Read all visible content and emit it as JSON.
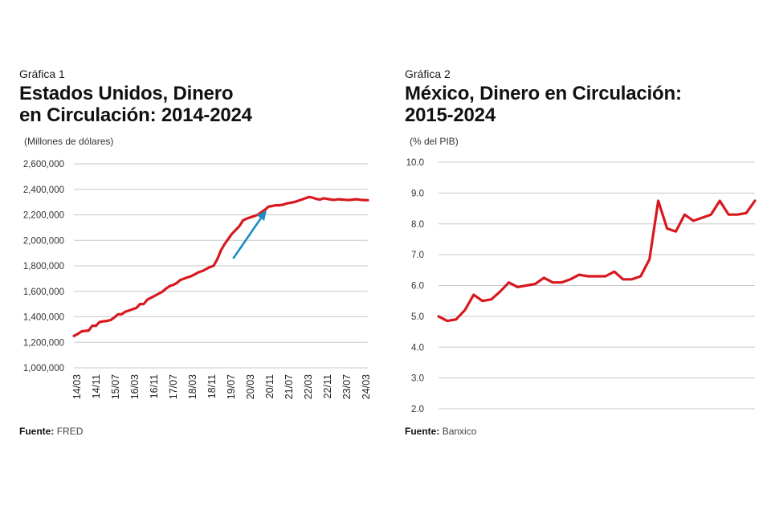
{
  "colors": {
    "line": "#d7191f",
    "arrow": "#1e8bc3",
    "grid": "#c8c8c8",
    "text": "#1a1a1a"
  },
  "chart_data": [
    {
      "type": "line",
      "label": "Gráfica 1",
      "title": "Estados Unidos, Dinero en Circulación: 2014-2024",
      "title_lines": [
        "Estados Unidos, Dinero",
        "en Circulación: 2014-2024"
      ],
      "unit": "(Millones de dólares)",
      "source_label": "Fuente:",
      "source": "FRED",
      "ylim": [
        1000000,
        2600000
      ],
      "yticks": [
        "1,000,000",
        "1,200,000",
        "1,400,000",
        "1,600,000",
        "1,800,000",
        "2,000,000",
        "2,200,000",
        "2,400,000",
        "2,600,000"
      ],
      "xlim": [
        0,
        40
      ],
      "xticks": [
        "14/03",
        "14/11",
        "15/07",
        "16/03",
        "16/11",
        "17/07",
        "18/03",
        "18/11",
        "19/07",
        "20/03",
        "20/11",
        "21/07",
        "22/03",
        "22/11",
        "23/07",
        "24/03"
      ],
      "annotation": "arrow-up-trend",
      "series": [
        {
          "name": "Dinero en circulación",
          "x": [
            0,
            0.5,
            1,
            1.5,
            2,
            2.5,
            3,
            3.5,
            4,
            4.5,
            5,
            5.5,
            6,
            6.5,
            7,
            7.5,
            8,
            8.5,
            9,
            9.5,
            10,
            10.5,
            11,
            11.5,
            12,
            12.5,
            13,
            13.5,
            14,
            14.5,
            15,
            15.5,
            16,
            16.5,
            17,
            17.5,
            18,
            18.5,
            19,
            19.5,
            20,
            20.5,
            21,
            21.5,
            22,
            22.5,
            23,
            23.5,
            24,
            24.5,
            25,
            25.5,
            26,
            26.5,
            27,
            27.5,
            28,
            28.5,
            29,
            29.5,
            30,
            30.5,
            31,
            31.5,
            32,
            32.5,
            33,
            33.5,
            34,
            34.5,
            35,
            35.5,
            36,
            36.5,
            37,
            37.5,
            38,
            38.5,
            39,
            39.5,
            40
          ],
          "values": [
            1250000,
            1265000,
            1285000,
            1290000,
            1292000,
            1330000,
            1330000,
            1360000,
            1365000,
            1368000,
            1375000,
            1395000,
            1420000,
            1420000,
            1440000,
            1450000,
            1460000,
            1470000,
            1500000,
            1500000,
            1535000,
            1550000,
            1565000,
            1580000,
            1595000,
            1620000,
            1640000,
            1650000,
            1665000,
            1690000,
            1700000,
            1710000,
            1720000,
            1735000,
            1750000,
            1760000,
            1775000,
            1790000,
            1800000,
            1850000,
            1920000,
            1970000,
            2010000,
            2050000,
            2080000,
            2110000,
            2155000,
            2170000,
            2180000,
            2190000,
            2200000,
            2220000,
            2240000,
            2265000,
            2270000,
            2275000,
            2275000,
            2280000,
            2290000,
            2295000,
            2300000,
            2310000,
            2320000,
            2330000,
            2340000,
            2335000,
            2325000,
            2320000,
            2330000,
            2325000,
            2320000,
            2318000,
            2322000,
            2320000,
            2318000,
            2316000,
            2320000,
            2322000,
            2318000,
            2316000,
            2315000
          ]
        }
      ]
    },
    {
      "type": "line",
      "label": "Gráfica 2",
      "title": "México, Dinero en Circulación: 2015-2024",
      "title_lines": [
        "México, Dinero en Circulación:",
        "2015-2024"
      ],
      "unit": "(% del PIB)",
      "source_label": "Fuente:",
      "source": "Banxico",
      "ylim": [
        2.0,
        10.0
      ],
      "yticks": [
        "2.0",
        "3.0",
        "4.0",
        "5.0",
        "6.0",
        "7.0",
        "8.0",
        "9.0",
        "10.0"
      ],
      "xlim": [
        0,
        36
      ],
      "series": [
        {
          "name": "% del PIB",
          "x": [
            0,
            1,
            2,
            3,
            4,
            5,
            6,
            7,
            8,
            9,
            10,
            11,
            12,
            13,
            14,
            15,
            16,
            17,
            18,
            19,
            20,
            21,
            22,
            23,
            24,
            25,
            26,
            27,
            28,
            29,
            30,
            31,
            32,
            33,
            34,
            35,
            36
          ],
          "values": [
            5.0,
            4.85,
            4.9,
            5.2,
            5.7,
            5.5,
            5.55,
            5.8,
            6.1,
            5.95,
            6.0,
            6.05,
            6.25,
            6.1,
            6.1,
            6.2,
            6.35,
            6.3,
            6.3,
            6.3,
            6.45,
            6.2,
            6.2,
            6.3,
            6.85,
            8.75,
            7.85,
            7.75,
            8.3,
            8.1,
            8.2,
            8.3,
            8.75,
            8.3,
            8.3,
            8.35,
            8.75
          ]
        }
      ]
    }
  ]
}
